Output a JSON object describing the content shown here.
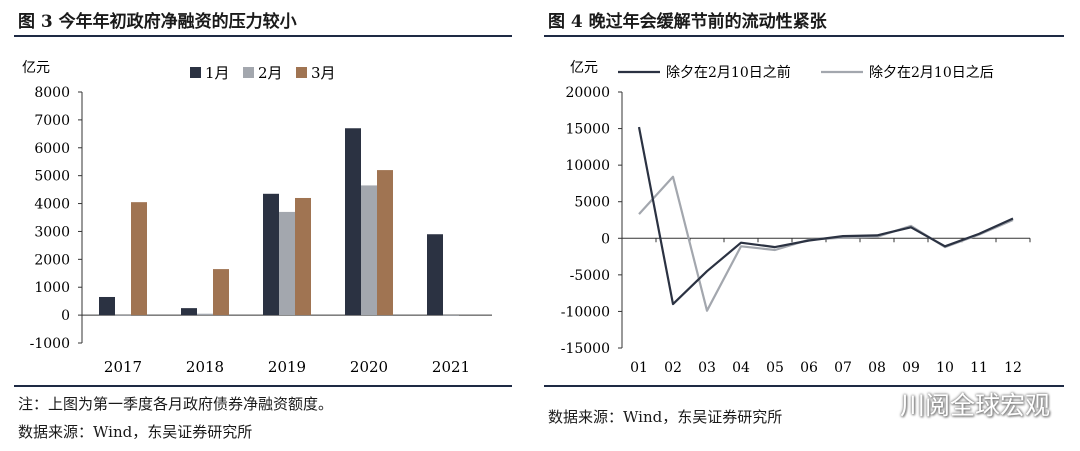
{
  "left": {
    "title": "图 3  今年年初政府净融资的压力较小",
    "note": "注：上图为第一季度各月政府债券净融资额度。",
    "source": "数据来源：Wind，东吴证券研究所"
  },
  "right": {
    "title": "图 4 晚过年会缓解节前的流动性紧张",
    "source": "数据来源：Wind，东吴证券研究所"
  },
  "watermark": "川阅全球宏观",
  "chart_data": [
    {
      "type": "bar",
      "ylabel": "亿元",
      "categories": [
        "2017",
        "2018",
        "2019",
        "2020",
        "2021"
      ],
      "series": [
        {
          "name": "1月",
          "color": "#2b3242",
          "values": [
            650,
            250,
            4350,
            6700,
            2900
          ]
        },
        {
          "name": "2月",
          "color": "#a3a7ae",
          "values": [
            0,
            50,
            3700,
            4650,
            0
          ]
        },
        {
          "name": "3月",
          "color": "#a07452",
          "values": [
            4050,
            1650,
            4200,
            5200,
            null
          ]
        }
      ],
      "ylim": [
        -1000,
        8000
      ],
      "yticks": [
        -1000,
        0,
        1000,
        2000,
        3000,
        4000,
        5000,
        6000,
        7000,
        8000
      ],
      "legend": "top"
    },
    {
      "type": "line",
      "ylabel": "亿元",
      "x": [
        "01",
        "02",
        "03",
        "04",
        "05",
        "06",
        "07",
        "08",
        "09",
        "10",
        "11",
        "12"
      ],
      "series": [
        {
          "name": "除夕在2月10日之前",
          "color": "#2b3242",
          "values": [
            15200,
            -9000,
            -4500,
            -600,
            -1200,
            -300,
            300,
            400,
            1500,
            -1100,
            600,
            2700
          ]
        },
        {
          "name": "除夕在2月10日之后",
          "color": "#a3a7ae",
          "values": [
            3300,
            8400,
            -9900,
            -1100,
            -1600,
            -200,
            100,
            200,
            1700,
            -1200,
            500,
            2500
          ]
        }
      ],
      "ylim": [
        -15000,
        20000
      ],
      "yticks": [
        -15000,
        -10000,
        -5000,
        0,
        5000,
        10000,
        15000,
        20000
      ],
      "legend": "top"
    }
  ]
}
